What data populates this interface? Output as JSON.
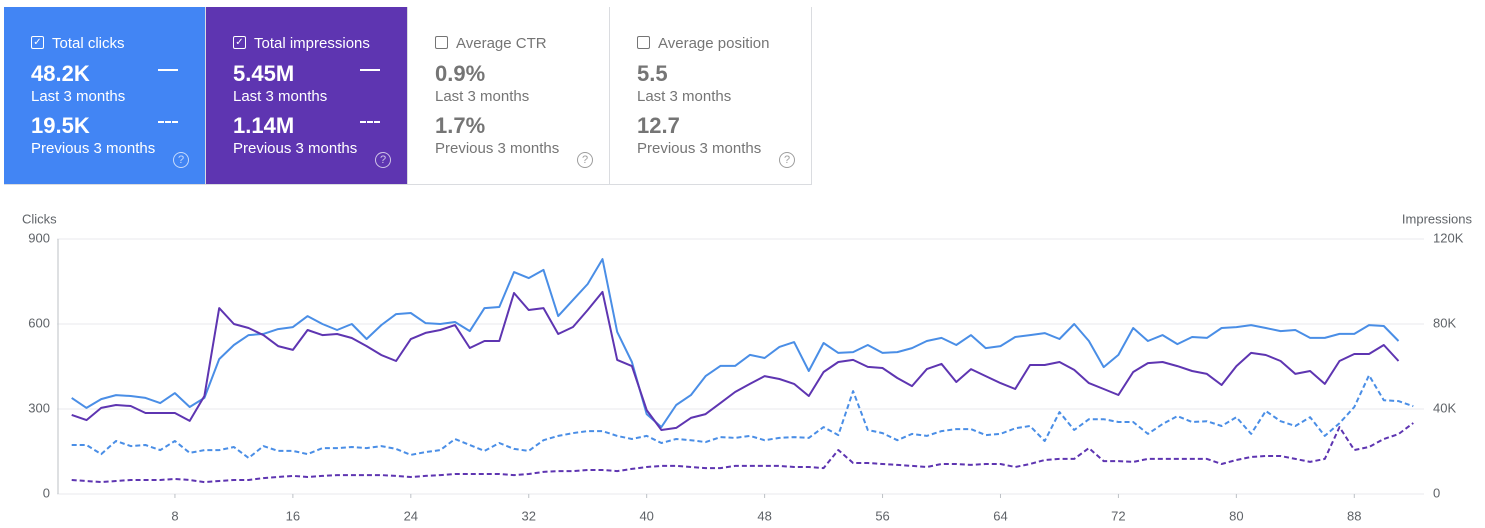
{
  "cards": [
    {
      "label": "Total clicks",
      "value": "48.2K",
      "period": "Last 3 months",
      "prev_value": "19.5K",
      "prev_period": "Previous 3 months",
      "checked": true,
      "color": "#4285f4"
    },
    {
      "label": "Total impressions",
      "value": "5.45M",
      "period": "Last 3 months",
      "prev_value": "1.14M",
      "prev_period": "Previous 3 months",
      "checked": true,
      "color": "#5e35b1"
    },
    {
      "label": "Average CTR",
      "value": "0.9%",
      "period": "Last 3 months",
      "prev_value": "1.7%",
      "prev_period": "Previous 3 months",
      "checked": false,
      "color": "#ffffff"
    },
    {
      "label": "Average position",
      "value": "5.5",
      "period": "Last 3 months",
      "prev_value": "12.7",
      "prev_period": "Previous 3 months",
      "checked": false,
      "color": "#ffffff"
    }
  ],
  "chart_data": {
    "type": "line",
    "ylabel": "Clicks",
    "y2label": "Impressions",
    "x": [
      1,
      2,
      3,
      4,
      5,
      6,
      7,
      8,
      9,
      10,
      11,
      12,
      13,
      14,
      15,
      16,
      17,
      18,
      19,
      20,
      21,
      22,
      23,
      24,
      25,
      26,
      27,
      28,
      29,
      30,
      31,
      32,
      33,
      34,
      35,
      36,
      37,
      38,
      39,
      40,
      41,
      42,
      43,
      44,
      45,
      46,
      47,
      48,
      49,
      50,
      51,
      52,
      53,
      54,
      55,
      56,
      57,
      58,
      59,
      60,
      61,
      62,
      63,
      64,
      65,
      66,
      67,
      68,
      69,
      70,
      71,
      72,
      73,
      74,
      75,
      76,
      77,
      78,
      79,
      80,
      81,
      82,
      83,
      84,
      85,
      86,
      87,
      88,
      89,
      90,
      91,
      92
    ],
    "xlim": [
      0,
      93
    ],
    "xticks": [
      8,
      16,
      24,
      32,
      40,
      48,
      56,
      64,
      72,
      80,
      88
    ],
    "ylim": [
      0,
      900
    ],
    "yticks": [
      0,
      300,
      600,
      900
    ],
    "y2lim": [
      0,
      120000
    ],
    "y2ticks": [
      0,
      {
        "value": 40000,
        "label": "40K"
      },
      {
        "value": 80000,
        "label": "80K"
      },
      {
        "value": 120000,
        "label": "120K"
      }
    ],
    "grid": true,
    "series": [
      {
        "color": "#4a8ee6",
        "dashed": false,
        "axis": "y",
        "values": [
          339,
          304,
          335,
          349,
          346,
          339,
          321,
          356,
          307,
          339,
          476,
          526,
          561,
          565,
          582,
          589,
          628,
          600,
          579,
          600,
          547,
          596,
          635,
          639,
          603,
          600,
          607,
          575,
          656,
          660,
          783,
          762,
          791,
          628,
          685,
          741,
          829,
          572,
          466,
          282,
          236,
          314,
          349,
          416,
          452,
          452,
          491,
          480,
          519,
          536,
          434,
          533,
          498,
          501,
          526,
          498,
          501,
          515,
          540,
          551,
          526,
          561,
          515,
          522,
          554,
          561,
          568,
          547,
          600,
          540,
          448,
          491,
          586,
          540,
          561,
          529,
          554,
          551,
          586,
          589,
          596,
          586,
          575,
          579,
          551,
          551,
          565,
          565,
          596,
          593,
          540,
          null
        ]
      },
      {
        "color": "#5e35b1",
        "dashed": false,
        "axis": "y2",
        "values": [
          37200,
          34800,
          40500,
          41900,
          41400,
          38100,
          38100,
          38100,
          34400,
          46100,
          87500,
          80000,
          78100,
          74800,
          69600,
          67800,
          77200,
          74800,
          75300,
          73400,
          69600,
          65400,
          62600,
          72900,
          75800,
          77200,
          79500,
          68700,
          72000,
          72000,
          94600,
          86600,
          87500,
          75300,
          78600,
          86600,
          95100,
          63100,
          60200,
          39500,
          30100,
          31100,
          35800,
          37600,
          42800,
          48000,
          51800,
          55500,
          54100,
          51800,
          46100,
          57400,
          62100,
          63100,
          59800,
          59300,
          54600,
          50800,
          58800,
          61200,
          52700,
          58800,
          55500,
          52200,
          49400,
          60700,
          60700,
          62100,
          58400,
          52200,
          49400,
          46600,
          57400,
          61600,
          62100,
          60200,
          57900,
          56500,
          51300,
          60200,
          66400,
          65400,
          62600,
          56500,
          57900,
          51800,
          62600,
          65900,
          65900,
          70100,
          62600,
          null
        ]
      },
      {
        "color": "#4a8ee6",
        "dashed": true,
        "axis": "y",
        "values": [
          173,
          173,
          141,
          187,
          169,
          173,
          155,
          187,
          145,
          155,
          155,
          166,
          127,
          169,
          152,
          152,
          141,
          162,
          162,
          166,
          162,
          169,
          159,
          138,
          148,
          155,
          194,
          173,
          152,
          180,
          159,
          152,
          190,
          205,
          215,
          222,
          222,
          205,
          194,
          205,
          180,
          194,
          190,
          183,
          201,
          198,
          205,
          190,
          198,
          201,
          198,
          236,
          208,
          363,
          226,
          215,
          190,
          212,
          205,
          222,
          229,
          229,
          208,
          212,
          232,
          240,
          187,
          289,
          226,
          264,
          264,
          254,
          254,
          212,
          247,
          275,
          254,
          257,
          240,
          271,
          212,
          293,
          257,
          240,
          271,
          205,
          250,
          307,
          419,
          331,
          328,
          310
        ]
      },
      {
        "color": "#5e35b1",
        "dashed": true,
        "axis": "y2",
        "values": [
          6600,
          6100,
          5600,
          6100,
          6600,
          6600,
          6600,
          7100,
          6600,
          5600,
          6100,
          6600,
          6600,
          7500,
          8000,
          8500,
          8000,
          8500,
          8900,
          8900,
          8900,
          8900,
          8500,
          8000,
          8500,
          8900,
          9400,
          9400,
          9400,
          9400,
          8900,
          9400,
          10400,
          10800,
          10800,
          11300,
          11300,
          10800,
          11800,
          12700,
          13200,
          13200,
          12700,
          12200,
          12200,
          13200,
          13200,
          13200,
          13200,
          12700,
          12700,
          12200,
          20700,
          14600,
          14600,
          14100,
          13700,
          13200,
          12700,
          14100,
          14100,
          13700,
          14100,
          14100,
          12700,
          14100,
          16000,
          16500,
          16500,
          21600,
          15500,
          15500,
          15100,
          16500,
          16500,
          16500,
          16500,
          16500,
          14100,
          16000,
          17400,
          17900,
          17900,
          16500,
          15100,
          16500,
          31500,
          20700,
          22100,
          25900,
          28200,
          33400
        ]
      }
    ]
  }
}
